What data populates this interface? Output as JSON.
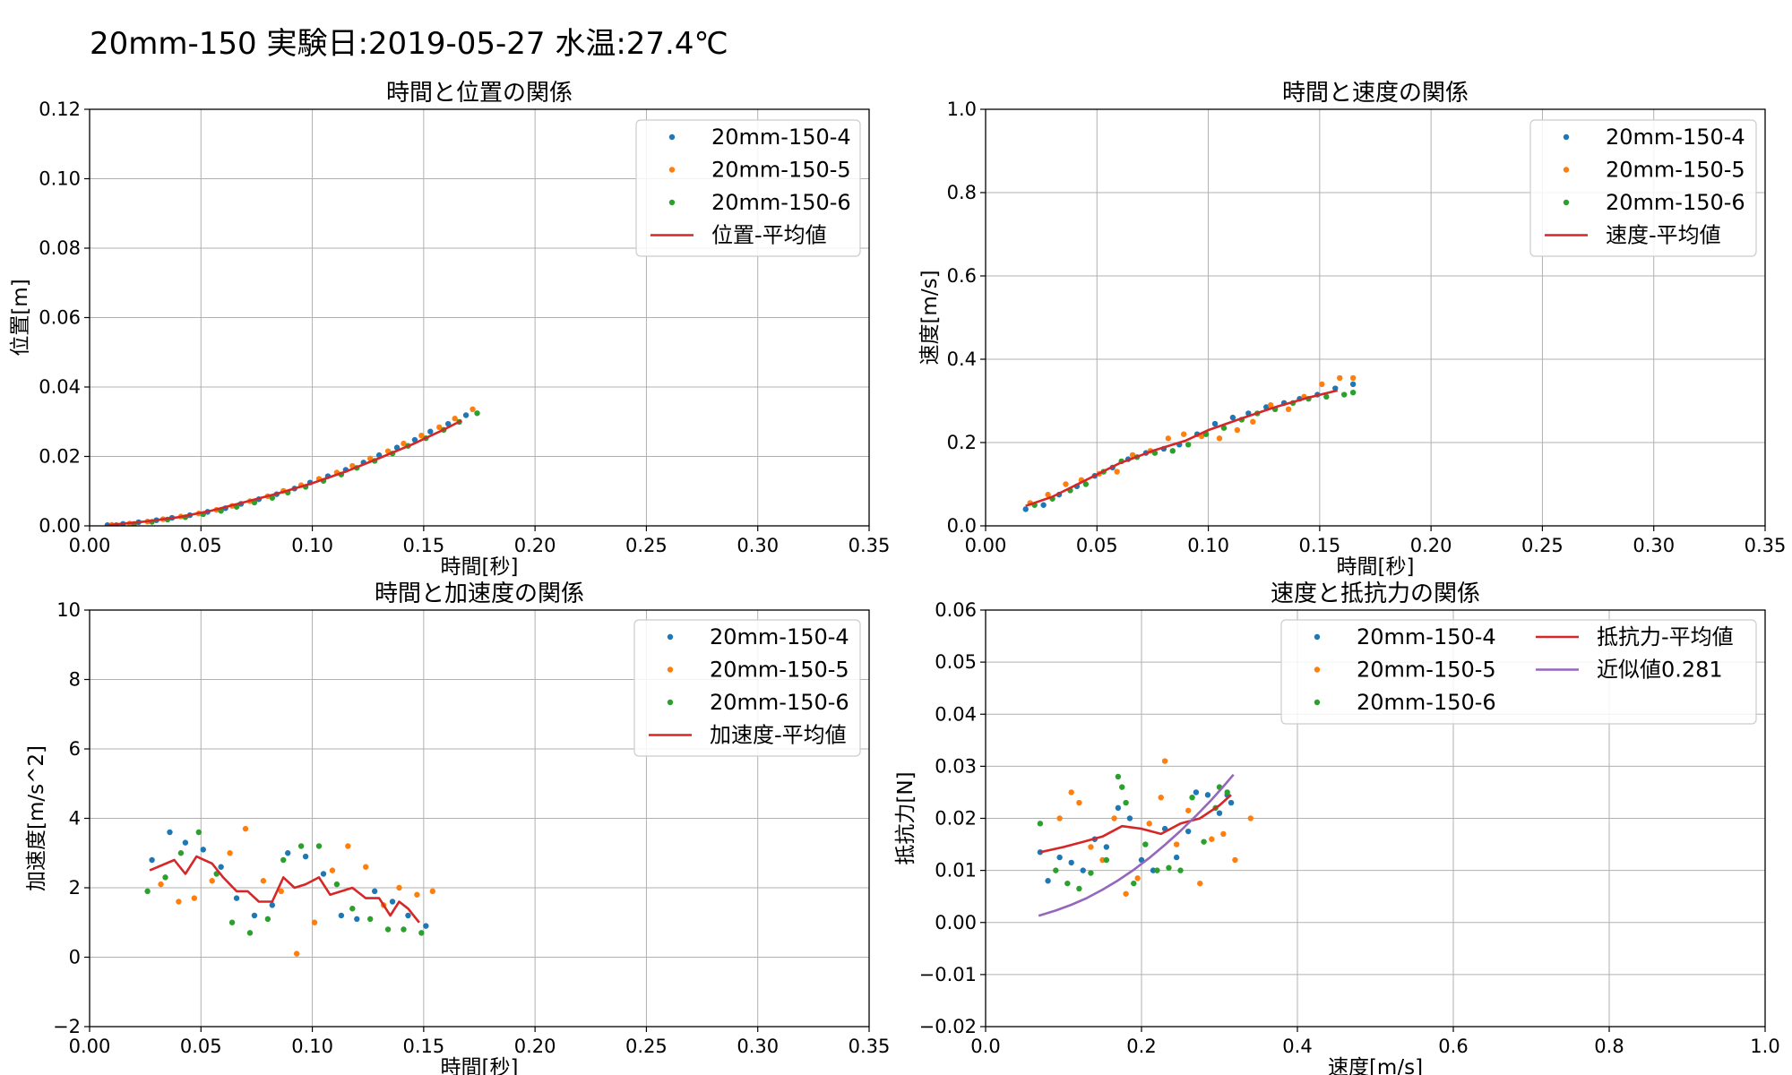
{
  "suptitle": "20mm-150 実験日:2019-05-27 水温:27.4℃",
  "colors": {
    "s4": "#1f77b4",
    "s5": "#ff7f0e",
    "s6": "#2ca02c",
    "mean": "#d62728",
    "fit": "#9467bd",
    "grid": "#b0b0b0"
  },
  "chart_data": [
    {
      "type": "scatter",
      "title": "時間と位置の関係",
      "xlabel": "時間[秒]",
      "ylabel": "位置[m]",
      "xlim": [
        0,
        0.35
      ],
      "ylim": [
        0,
        0.125
      ],
      "xticks": [
        "0.00",
        "0.05",
        "0.10",
        "0.15",
        "0.20",
        "0.25",
        "0.30",
        "0.35"
      ],
      "yticks": [
        "0.00",
        "0.02",
        "0.04",
        "0.06",
        "0.08",
        "0.10",
        "0.12"
      ],
      "grid": true,
      "legend_position": "upper-right",
      "legend_cols": 1,
      "series": [
        {
          "name": "20mm-150-4",
          "kind": "scatter",
          "color": "#1f77b4",
          "x": [
            0.008,
            0.015,
            0.022,
            0.03,
            0.037,
            0.045,
            0.053,
            0.061,
            0.068,
            0.076,
            0.084,
            0.092,
            0.099,
            0.107,
            0.115,
            0.123,
            0.13,
            0.138,
            0.146,
            0.153,
            0.161,
            0.169
          ],
          "y": [
            0.0002,
            0.0006,
            0.0011,
            0.0017,
            0.0024,
            0.0032,
            0.0042,
            0.0053,
            0.0066,
            0.008,
            0.0095,
            0.0112,
            0.013,
            0.0149,
            0.0168,
            0.019,
            0.0212,
            0.0235,
            0.0258,
            0.0283,
            0.0306,
            0.0332
          ]
        },
        {
          "name": "20mm-150-5",
          "kind": "scatter",
          "color": "#ff7f0e",
          "x": [
            0.01,
            0.018,
            0.026,
            0.033,
            0.041,
            0.049,
            0.057,
            0.064,
            0.072,
            0.08,
            0.087,
            0.095,
            0.103,
            0.111,
            0.118,
            0.126,
            0.134,
            0.141,
            0.149,
            0.157,
            0.164,
            0.172
          ],
          "y": [
            0.0003,
            0.0007,
            0.0013,
            0.002,
            0.0028,
            0.0037,
            0.0048,
            0.006,
            0.0074,
            0.0089,
            0.0105,
            0.0122,
            0.0141,
            0.016,
            0.018,
            0.0202,
            0.0224,
            0.0247,
            0.0271,
            0.0296,
            0.0322,
            0.035
          ]
        },
        {
          "name": "20mm-150-6",
          "kind": "scatter",
          "color": "#2ca02c",
          "x": [
            0.012,
            0.02,
            0.028,
            0.035,
            0.043,
            0.051,
            0.059,
            0.066,
            0.074,
            0.082,
            0.089,
            0.097,
            0.105,
            0.113,
            0.12,
            0.128,
            0.136,
            0.143,
            0.151,
            0.159,
            0.166,
            0.174
          ],
          "y": [
            0.0002,
            0.0006,
            0.0012,
            0.0019,
            0.0026,
            0.0035,
            0.0045,
            0.0057,
            0.007,
            0.0084,
            0.01,
            0.0117,
            0.0135,
            0.0154,
            0.0174,
            0.0195,
            0.0217,
            0.024,
            0.0263,
            0.0288,
            0.0312,
            0.0338
          ]
        },
        {
          "name": "位置-平均値",
          "kind": "line",
          "color": "#d62728",
          "x": [
            0.008,
            0.025,
            0.04,
            0.055,
            0.07,
            0.085,
            0.1,
            0.115,
            0.13,
            0.145,
            0.16,
            0.167
          ],
          "y": [
            0.0002,
            0.0013,
            0.0026,
            0.0046,
            0.0072,
            0.0098,
            0.0128,
            0.0163,
            0.0203,
            0.0245,
            0.0292,
            0.0316
          ]
        }
      ]
    },
    {
      "type": "scatter",
      "title": "時間と速度の関係",
      "xlabel": "時間[秒]",
      "ylabel": "速度[m/s]",
      "xlim": [
        0,
        0.35
      ],
      "ylim": [
        0,
        1.0
      ],
      "xticks": [
        "0.00",
        "0.05",
        "0.10",
        "0.15",
        "0.20",
        "0.25",
        "0.30",
        "0.35"
      ],
      "yticks": [
        "0.0",
        "0.2",
        "0.4",
        "0.6",
        "0.8",
        "1.0"
      ],
      "grid": true,
      "legend_position": "upper-right",
      "legend_cols": 1,
      "series": [
        {
          "name": "20mm-150-4",
          "kind": "scatter",
          "color": "#1f77b4",
          "x": [
            0.018,
            0.026,
            0.033,
            0.041,
            0.049,
            0.057,
            0.064,
            0.072,
            0.08,
            0.087,
            0.095,
            0.103,
            0.111,
            0.118,
            0.126,
            0.134,
            0.141,
            0.149,
            0.157,
            0.165
          ],
          "y": [
            0.04,
            0.05,
            0.075,
            0.095,
            0.12,
            0.14,
            0.16,
            0.175,
            0.185,
            0.195,
            0.22,
            0.245,
            0.26,
            0.27,
            0.285,
            0.295,
            0.305,
            0.315,
            0.33,
            0.34
          ]
        },
        {
          "name": "20mm-150-5",
          "kind": "scatter",
          "color": "#ff7f0e",
          "x": [
            0.02,
            0.028,
            0.036,
            0.043,
            0.051,
            0.059,
            0.066,
            0.074,
            0.082,
            0.089,
            0.097,
            0.105,
            0.113,
            0.12,
            0.128,
            0.136,
            0.143,
            0.151,
            0.159,
            0.165
          ],
          "y": [
            0.055,
            0.075,
            0.1,
            0.11,
            0.125,
            0.13,
            0.17,
            0.18,
            0.21,
            0.22,
            0.215,
            0.21,
            0.23,
            0.25,
            0.29,
            0.28,
            0.31,
            0.34,
            0.355,
            0.355
          ]
        },
        {
          "name": "20mm-150-6",
          "kind": "scatter",
          "color": "#2ca02c",
          "x": [
            0.022,
            0.03,
            0.038,
            0.045,
            0.053,
            0.061,
            0.068,
            0.076,
            0.084,
            0.091,
            0.099,
            0.107,
            0.115,
            0.122,
            0.13,
            0.138,
            0.145,
            0.153,
            0.161,
            0.165
          ],
          "y": [
            0.05,
            0.065,
            0.085,
            0.1,
            0.13,
            0.155,
            0.165,
            0.175,
            0.18,
            0.195,
            0.22,
            0.235,
            0.255,
            0.27,
            0.28,
            0.295,
            0.305,
            0.31,
            0.315,
            0.32
          ]
        },
        {
          "name": "速度-平均値",
          "kind": "line",
          "color": "#d62728",
          "x": [
            0.018,
            0.03,
            0.045,
            0.06,
            0.075,
            0.09,
            0.1,
            0.115,
            0.13,
            0.145,
            0.158
          ],
          "y": [
            0.048,
            0.07,
            0.11,
            0.15,
            0.18,
            0.205,
            0.23,
            0.258,
            0.285,
            0.308,
            0.325
          ]
        }
      ]
    },
    {
      "type": "scatter",
      "title": "時間と加速度の関係",
      "xlabel": "時間[秒]",
      "ylabel": "加速度[m/s^2]",
      "xlim": [
        0,
        0.35
      ],
      "ylim": [
        -2,
        10
      ],
      "xticks": [
        "0.00",
        "0.05",
        "0.10",
        "0.15",
        "0.20",
        "0.25",
        "0.30",
        "0.35"
      ],
      "yticks": [
        "−2",
        "0",
        "2",
        "4",
        "6",
        "8",
        "10"
      ],
      "grid": true,
      "legend_position": "upper-right",
      "legend_cols": 1,
      "series": [
        {
          "name": "20mm-150-4",
          "kind": "scatter",
          "color": "#1f77b4",
          "x": [
            0.028,
            0.036,
            0.043,
            0.051,
            0.059,
            0.066,
            0.074,
            0.082,
            0.089,
            0.097,
            0.105,
            0.113,
            0.12,
            0.128,
            0.136,
            0.143,
            0.151
          ],
          "y": [
            2.8,
            3.6,
            3.3,
            3.1,
            2.6,
            1.7,
            1.2,
            1.5,
            3.0,
            2.9,
            2.4,
            1.2,
            1.1,
            1.9,
            1.6,
            1.2,
            0.9
          ]
        },
        {
          "name": "20mm-150-5",
          "kind": "scatter",
          "color": "#ff7f0e",
          "x": [
            0.032,
            0.04,
            0.047,
            0.055,
            0.063,
            0.07,
            0.078,
            0.086,
            0.093,
            0.101,
            0.109,
            0.116,
            0.124,
            0.132,
            0.139,
            0.147,
            0.154
          ],
          "y": [
            2.1,
            1.6,
            1.7,
            2.2,
            3.0,
            3.7,
            2.2,
            1.9,
            0.1,
            1.0,
            2.5,
            3.2,
            2.6,
            1.5,
            2.0,
            1.8,
            1.9
          ]
        },
        {
          "name": "20mm-150-6",
          "kind": "scatter",
          "color": "#2ca02c",
          "x": [
            0.026,
            0.034,
            0.041,
            0.049,
            0.057,
            0.064,
            0.072,
            0.08,
            0.087,
            0.095,
            0.103,
            0.111,
            0.118,
            0.126,
            0.134,
            0.141,
            0.149
          ],
          "y": [
            1.9,
            2.3,
            3.0,
            3.6,
            2.4,
            1.0,
            0.7,
            1.1,
            2.8,
            3.2,
            3.2,
            2.1,
            1.4,
            1.1,
            0.8,
            0.8,
            0.7
          ]
        },
        {
          "name": "加速度-平均値",
          "kind": "line",
          "color": "#d62728",
          "x": [
            0.027,
            0.038,
            0.043,
            0.048,
            0.055,
            0.06,
            0.066,
            0.071,
            0.076,
            0.082,
            0.087,
            0.092,
            0.097,
            0.103,
            0.108,
            0.113,
            0.118,
            0.124,
            0.13,
            0.135,
            0.139,
            0.143,
            0.148
          ],
          "y": [
            2.5,
            2.8,
            2.4,
            2.9,
            2.7,
            2.3,
            1.9,
            1.9,
            1.6,
            1.6,
            2.3,
            2.0,
            2.1,
            2.3,
            1.8,
            1.9,
            2.0,
            1.7,
            1.7,
            1.2,
            1.6,
            1.4,
            1.0
          ]
        }
      ]
    },
    {
      "type": "scatter",
      "title": "速度と抵抗力の関係",
      "xlabel": "速度[m/s]",
      "ylabel": "抵抗力[N]",
      "xlim": [
        0,
        1.0
      ],
      "ylim": [
        -0.02,
        0.06
      ],
      "xticks": [
        "0.0",
        "0.2",
        "0.4",
        "0.6",
        "0.8",
        "1.0"
      ],
      "yticks": [
        "−0.02",
        "−0.01",
        "0.00",
        "0.01",
        "0.02",
        "0.03",
        "0.04",
        "0.05",
        "0.06"
      ],
      "grid": true,
      "legend_position": "upper-right",
      "legend_cols": 2,
      "series": [
        {
          "name": "20mm-150-4",
          "kind": "scatter",
          "color": "#1f77b4",
          "x": [
            0.07,
            0.08,
            0.095,
            0.11,
            0.125,
            0.14,
            0.155,
            0.17,
            0.185,
            0.2,
            0.215,
            0.23,
            0.245,
            0.26,
            0.27,
            0.285,
            0.3,
            0.31,
            0.315
          ],
          "y": [
            0.0135,
            0.008,
            0.0125,
            0.0115,
            0.01,
            0.016,
            0.0145,
            0.022,
            0.02,
            0.012,
            0.01,
            0.018,
            0.0125,
            0.0175,
            0.025,
            0.0245,
            0.021,
            0.0245,
            0.023
          ]
        },
        {
          "name": "20mm-150-5",
          "kind": "scatter",
          "color": "#ff7f0e",
          "x": [
            0.095,
            0.11,
            0.12,
            0.135,
            0.15,
            0.165,
            0.18,
            0.195,
            0.21,
            0.225,
            0.23,
            0.245,
            0.26,
            0.275,
            0.29,
            0.305,
            0.32,
            0.34
          ],
          "y": [
            0.02,
            0.025,
            0.023,
            0.0145,
            0.012,
            0.02,
            0.0055,
            0.0085,
            0.019,
            0.024,
            0.031,
            0.015,
            0.0215,
            0.0075,
            0.016,
            0.017,
            0.012,
            0.02
          ]
        },
        {
          "name": "20mm-150-6",
          "kind": "scatter",
          "color": "#2ca02c",
          "x": [
            0.07,
            0.09,
            0.105,
            0.12,
            0.135,
            0.155,
            0.17,
            0.175,
            0.18,
            0.19,
            0.205,
            0.22,
            0.235,
            0.25,
            0.265,
            0.28,
            0.295,
            0.3,
            0.31
          ],
          "y": [
            0.019,
            0.01,
            0.0075,
            0.0065,
            0.0095,
            0.012,
            0.028,
            0.026,
            0.023,
            0.0075,
            0.015,
            0.01,
            0.0105,
            0.01,
            0.024,
            0.0155,
            0.022,
            0.026,
            0.025
          ]
        },
        {
          "name": "抵抗力-平均値",
          "kind": "line",
          "color": "#d62728",
          "x": [
            0.07,
            0.1,
            0.125,
            0.15,
            0.175,
            0.2,
            0.225,
            0.25,
            0.275,
            0.3,
            0.315
          ],
          "y": [
            0.0135,
            0.0145,
            0.0155,
            0.0165,
            0.0185,
            0.018,
            0.017,
            0.019,
            0.02,
            0.0225,
            0.0245
          ]
        },
        {
          "name": "近似値0.281",
          "kind": "line",
          "color": "#9467bd",
          "x": [
            0.068,
            0.09,
            0.11,
            0.13,
            0.15,
            0.17,
            0.19,
            0.21,
            0.23,
            0.25,
            0.27,
            0.29,
            0.305,
            0.318
          ],
          "y": [
            0.0013,
            0.0023,
            0.0034,
            0.0047,
            0.0063,
            0.0081,
            0.0101,
            0.0124,
            0.0149,
            0.0176,
            0.0205,
            0.0236,
            0.0261,
            0.0284
          ]
        }
      ]
    }
  ]
}
